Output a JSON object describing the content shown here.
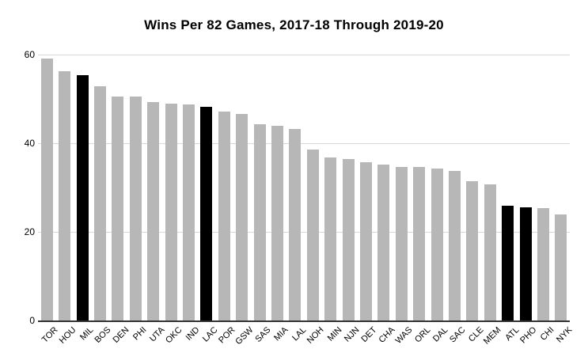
{
  "chart_data": {
    "type": "bar",
    "title": "Wins Per 82 Games, 2017-18 Through 2019-20",
    "categories": [
      "TOR",
      "HOU",
      "MIL",
      "BOS",
      "DEN",
      "PHI",
      "UTA",
      "OKC",
      "IND",
      "LAC",
      "POR",
      "GSW",
      "SAS",
      "MIA",
      "LAL",
      "NOH",
      "MIN",
      "NJN",
      "DET",
      "CHA",
      "WAS",
      "ORL",
      "DAL",
      "SAC",
      "CLE",
      "MEM",
      "ATL",
      "PHO",
      "CHI",
      "NYK"
    ],
    "values": [
      59.1,
      56.3,
      55.4,
      52.8,
      50.5,
      50.5,
      49.3,
      49.0,
      48.8,
      48.3,
      47.2,
      46.6,
      44.3,
      43.9,
      43.3,
      38.6,
      36.7,
      36.5,
      35.7,
      35.1,
      34.7,
      34.6,
      34.3,
      33.7,
      31.5,
      30.8,
      25.9,
      25.6,
      25.4,
      23.9
    ],
    "highlighted_categories": [
      "MIL",
      "LAC",
      "ATL",
      "PHO"
    ],
    "xlabel": "",
    "ylabel": "",
    "ylim": [
      0,
      60
    ],
    "yticks": [
      0,
      20,
      40,
      60
    ],
    "grid": true,
    "legend": "none",
    "colors": {
      "bar": "#b7b7b7",
      "highlight": "#000000",
      "gridline": "#d9d9d9",
      "axis_line": "#333333",
      "text": "#000000",
      "background": "#ffffff"
    }
  }
}
